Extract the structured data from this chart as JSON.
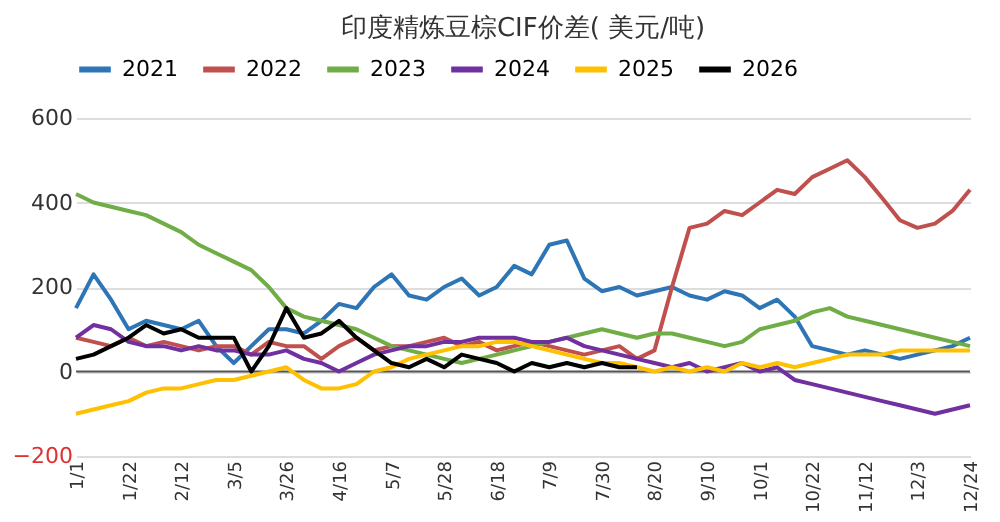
{
  "chart_data": {
    "type": "line",
    "title": "印度精炼豆棕CIF价差( 美元/吨)",
    "categories": [
      "1/1",
      null,
      null,
      "1/22",
      null,
      null,
      "2/12",
      null,
      null,
      "3/5",
      null,
      null,
      "3/26",
      null,
      null,
      "4/16",
      null,
      null,
      "5/7",
      null,
      null,
      "5/28",
      null,
      null,
      "6/18",
      null,
      null,
      "7/9",
      null,
      null,
      "7/30",
      null,
      null,
      "8/20",
      null,
      null,
      "9/10",
      null,
      null,
      "10/1",
      null,
      null,
      "10/22",
      null,
      null,
      "11/12",
      null,
      null,
      "12/3",
      null,
      null,
      "12/24"
    ],
    "series": [
      {
        "name": "2021",
        "color": "#2e75b6",
        "values": [
          150,
          230,
          170,
          100,
          120,
          110,
          100,
          120,
          60,
          20,
          60,
          100,
          100,
          90,
          120,
          160,
          150,
          200,
          230,
          180,
          170,
          200,
          220,
          180,
          200,
          250,
          230,
          300,
          310,
          220,
          190,
          200,
          180,
          190,
          200,
          180,
          170,
          190,
          180,
          150,
          170,
          130,
          60,
          50,
          40,
          50,
          40,
          30,
          40,
          50,
          60,
          80
        ]
      },
      {
        "name": "2022",
        "color": "#c0504d",
        "values": [
          80,
          70,
          60,
          80,
          60,
          70,
          60,
          50,
          60,
          60,
          40,
          70,
          60,
          60,
          30,
          60,
          80,
          50,
          60,
          60,
          70,
          80,
          60,
          70,
          50,
          60,
          70,
          60,
          50,
          40,
          50,
          60,
          30,
          50,
          200,
          340,
          350,
          380,
          370,
          400,
          430,
          420,
          460,
          480,
          500,
          460,
          410,
          358,
          340,
          350,
          380,
          430
        ]
      },
      {
        "name": "2023",
        "color": "#70ad47",
        "values": [
          420,
          400,
          390,
          380,
          370,
          350,
          330,
          300,
          280,
          260,
          240,
          200,
          150,
          130,
          120,
          110,
          100,
          80,
          60,
          50,
          40,
          30,
          20,
          30,
          40,
          50,
          60,
          70,
          80,
          90,
          100,
          90,
          80,
          90,
          90,
          80,
          70,
          60,
          70,
          100,
          110,
          120,
          140,
          150,
          130,
          120,
          110,
          100,
          90,
          80,
          70,
          60
        ]
      },
      {
        "name": "2024",
        "color": "#7030a0",
        "values": [
          80,
          110,
          100,
          70,
          60,
          60,
          50,
          60,
          50,
          50,
          40,
          40,
          50,
          30,
          20,
          0,
          20,
          40,
          50,
          60,
          60,
          70,
          70,
          80,
          80,
          80,
          70,
          70,
          80,
          60,
          50,
          40,
          30,
          20,
          10,
          20,
          0,
          10,
          20,
          0,
          10,
          -20,
          -30,
          -40,
          -50,
          -60,
          -70,
          -80,
          -90,
          -100,
          -90,
          -80
        ]
      },
      {
        "name": "2025",
        "color": "#ffc000",
        "values": [
          -100,
          -90,
          -80,
          -70,
          -50,
          -40,
          -40,
          -30,
          -20,
          -20,
          -10,
          0,
          10,
          -20,
          -40,
          -40,
          -30,
          0,
          10,
          30,
          40,
          50,
          60,
          60,
          70,
          70,
          60,
          50,
          40,
          30,
          20,
          20,
          10,
          0,
          10,
          0,
          10,
          0,
          20,
          10,
          20,
          10,
          20,
          30,
          40,
          40,
          40,
          50,
          50,
          50,
          50,
          50
        ]
      },
      {
        "name": "2026",
        "color": "#000000",
        "values": [
          30,
          40,
          60,
          80,
          110,
          90,
          100,
          80,
          80,
          80,
          0,
          60,
          150,
          80,
          90,
          120,
          80,
          50,
          20,
          10,
          30,
          10,
          40,
          30,
          20,
          0,
          20,
          10,
          20,
          10,
          20,
          10,
          10,
          null,
          null,
          null,
          null,
          null,
          null,
          null,
          null,
          null,
          null,
          null,
          null,
          null,
          null,
          null,
          null,
          null,
          null,
          null
        ]
      }
    ],
    "ylim": [
      -200,
      600
    ],
    "yticks": [
      -200,
      0,
      200,
      400,
      600
    ],
    "grid": "y",
    "legend": "top",
    "marker": "none",
    "line_style": "solid"
  }
}
